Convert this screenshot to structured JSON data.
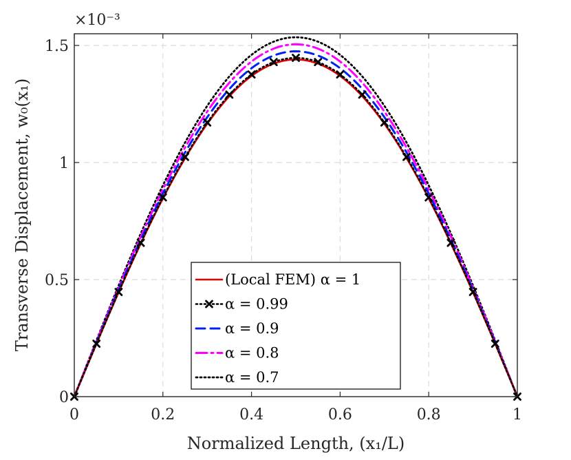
{
  "chart_data": {
    "type": "line",
    "xlabel": "Normalized Length, (x₁/L)",
    "ylabel": "Transverse Displacement, w₀(x₁)",
    "y_exponent": "×10⁻³",
    "xlim": [
      0,
      1
    ],
    "ylim": [
      0,
      1.55
    ],
    "xticks": [
      0,
      0.2,
      0.4,
      0.6,
      0.8,
      1
    ],
    "xtick_labels": [
      "0",
      "0.2",
      "0.4",
      "0.6",
      "0.8",
      "1"
    ],
    "yticks": [
      0,
      0.5,
      1,
      1.5
    ],
    "ytick_labels": [
      "0",
      "0.5",
      "1",
      "1.5"
    ],
    "grid": true,
    "legend_position": "bottom-center",
    "series": [
      {
        "name": "(Local FEM) α = 1",
        "color": "#e00000",
        "style": "solid",
        "peak": 1.44,
        "x": [
          0,
          0.05,
          0.1,
          0.15,
          0.2,
          0.25,
          0.3,
          0.35,
          0.4,
          0.45,
          0.5,
          0.55,
          0.6,
          0.65,
          0.7,
          0.75,
          0.8,
          0.85,
          0.9,
          0.95,
          1
        ],
        "y": [
          0,
          0.225,
          0.445,
          0.654,
          0.846,
          1.018,
          1.165,
          1.284,
          1.37,
          1.422,
          1.44,
          1.422,
          1.37,
          1.284,
          1.165,
          1.018,
          0.846,
          0.654,
          0.445,
          0.225,
          0
        ]
      },
      {
        "name": "α = 0.99",
        "color": "#000000",
        "style": "dotted-x",
        "peak": 1.447,
        "x": [
          0,
          0.05,
          0.1,
          0.15,
          0.2,
          0.25,
          0.3,
          0.35,
          0.4,
          0.45,
          0.5,
          0.55,
          0.6,
          0.65,
          0.7,
          0.75,
          0.8,
          0.85,
          0.9,
          0.95,
          1
        ],
        "y": [
          0,
          0.226,
          0.447,
          0.657,
          0.851,
          1.024,
          1.171,
          1.29,
          1.376,
          1.429,
          1.447,
          1.429,
          1.376,
          1.29,
          1.171,
          1.024,
          0.851,
          0.657,
          0.447,
          0.226,
          0
        ]
      },
      {
        "name": "α = 0.9",
        "color": "#0022ee",
        "style": "dashed",
        "peak": 1.475,
        "x": [
          0,
          0.05,
          0.1,
          0.15,
          0.2,
          0.25,
          0.3,
          0.35,
          0.4,
          0.45,
          0.5,
          0.55,
          0.6,
          0.65,
          0.7,
          0.75,
          0.8,
          0.85,
          0.9,
          0.95,
          1
        ],
        "y": [
          0,
          0.231,
          0.456,
          0.67,
          0.867,
          1.043,
          1.193,
          1.315,
          1.403,
          1.457,
          1.475,
          1.457,
          1.403,
          1.315,
          1.193,
          1.043,
          0.867,
          0.67,
          0.456,
          0.231,
          0
        ]
      },
      {
        "name": "α = 0.8",
        "color": "#ff00ff",
        "style": "dashdot",
        "peak": 1.505,
        "x": [
          0,
          0.05,
          0.1,
          0.15,
          0.2,
          0.25,
          0.3,
          0.35,
          0.4,
          0.45,
          0.5,
          0.55,
          0.6,
          0.65,
          0.7,
          0.75,
          0.8,
          0.85,
          0.9,
          0.95,
          1
        ],
        "y": [
          0,
          0.235,
          0.465,
          0.683,
          0.885,
          1.064,
          1.218,
          1.341,
          1.431,
          1.486,
          1.505,
          1.486,
          1.431,
          1.341,
          1.218,
          1.064,
          0.885,
          0.683,
          0.465,
          0.235,
          0
        ]
      },
      {
        "name": "α = 0.7",
        "color": "#000000",
        "style": "dotted",
        "peak": 1.535,
        "x": [
          0,
          0.05,
          0.1,
          0.15,
          0.2,
          0.25,
          0.3,
          0.35,
          0.4,
          0.45,
          0.5,
          0.55,
          0.6,
          0.65,
          0.7,
          0.75,
          0.8,
          0.85,
          0.9,
          0.95,
          1
        ],
        "y": [
          0,
          0.24,
          0.474,
          0.697,
          0.902,
          1.085,
          1.242,
          1.368,
          1.46,
          1.516,
          1.535,
          1.516,
          1.46,
          1.368,
          1.242,
          1.085,
          0.902,
          0.697,
          0.474,
          0.24,
          0
        ]
      }
    ]
  }
}
